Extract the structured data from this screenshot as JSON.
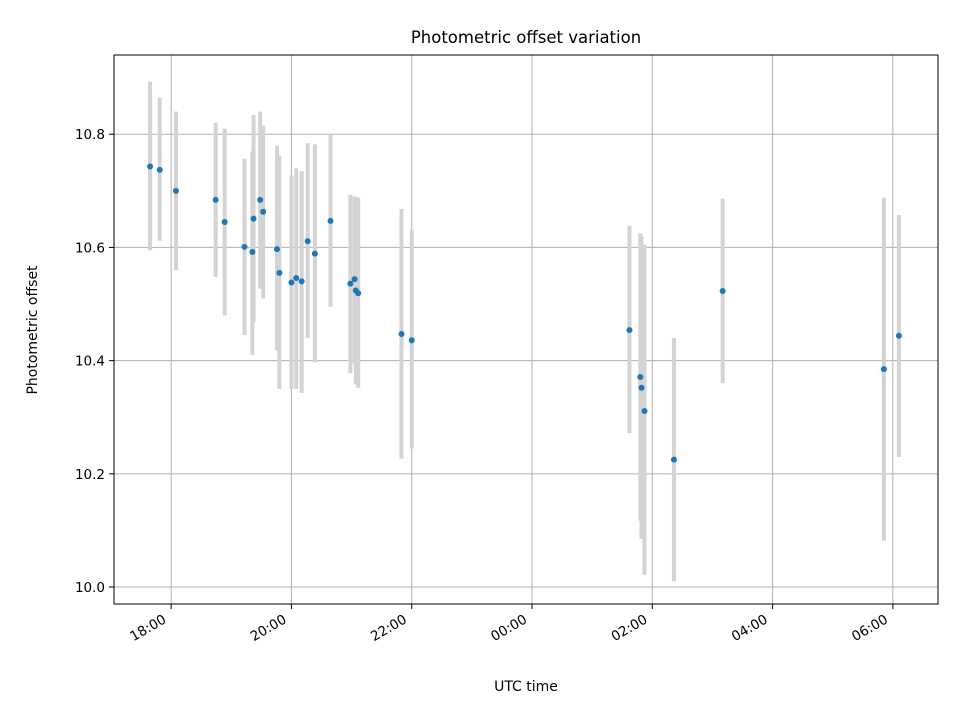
{
  "chart_data": {
    "type": "scatter",
    "title": "Photometric offset variation",
    "xlabel": "UTC time",
    "ylabel": "Photometric offset",
    "x_unit": "hours after 18:00 UTC (axis shows clock time, wraps at midnight)",
    "xlim": [
      -0.95,
      12.75
    ],
    "ylim": [
      9.97,
      10.94
    ],
    "x_ticks": [
      {
        "value": 0,
        "label": "18:00"
      },
      {
        "value": 2,
        "label": "20:00"
      },
      {
        "value": 4,
        "label": "22:00"
      },
      {
        "value": 6,
        "label": "00:00"
      },
      {
        "value": 8,
        "label": "02:00"
      },
      {
        "value": 10,
        "label": "04:00"
      },
      {
        "value": 12,
        "label": "06:00"
      }
    ],
    "y_ticks": [
      {
        "value": 10.0,
        "label": "10.0"
      },
      {
        "value": 10.2,
        "label": "10.2"
      },
      {
        "value": 10.4,
        "label": "10.4"
      },
      {
        "value": 10.6,
        "label": "10.6"
      },
      {
        "value": 10.8,
        "label": "10.8"
      }
    ],
    "grid": true,
    "marker_color": "#1f77b4",
    "errorbar_color": "#d3d3d3",
    "points": [
      {
        "x": -0.35,
        "y": 10.743,
        "ylo": 10.595,
        "yhi": 10.893
      },
      {
        "x": -0.19,
        "y": 10.737,
        "ylo": 10.612,
        "yhi": 10.865
      },
      {
        "x": 0.08,
        "y": 10.7,
        "ylo": 10.56,
        "yhi": 10.84
      },
      {
        "x": 0.74,
        "y": 10.684,
        "ylo": 10.548,
        "yhi": 10.82
      },
      {
        "x": 0.89,
        "y": 10.645,
        "ylo": 10.48,
        "yhi": 10.81
      },
      {
        "x": 1.22,
        "y": 10.601,
        "ylo": 10.445,
        "yhi": 10.757
      },
      {
        "x": 1.35,
        "y": 10.592,
        "ylo": 10.41,
        "yhi": 10.77
      },
      {
        "x": 1.37,
        "y": 10.651,
        "ylo": 10.468,
        "yhi": 10.834
      },
      {
        "x": 1.48,
        "y": 10.684,
        "ylo": 10.527,
        "yhi": 10.84
      },
      {
        "x": 1.53,
        "y": 10.663,
        "ylo": 10.51,
        "yhi": 10.815
      },
      {
        "x": 1.76,
        "y": 10.597,
        "ylo": 10.418,
        "yhi": 10.78
      },
      {
        "x": 1.8,
        "y": 10.555,
        "ylo": 10.35,
        "yhi": 10.762
      },
      {
        "x": 2.0,
        "y": 10.538,
        "ylo": 10.35,
        "yhi": 10.727
      },
      {
        "x": 2.08,
        "y": 10.546,
        "ylo": 10.35,
        "yhi": 10.74
      },
      {
        "x": 2.17,
        "y": 10.54,
        "ylo": 10.343,
        "yhi": 10.735
      },
      {
        "x": 2.27,
        "y": 10.611,
        "ylo": 10.44,
        "yhi": 10.784
      },
      {
        "x": 2.39,
        "y": 10.589,
        "ylo": 10.397,
        "yhi": 10.782
      },
      {
        "x": 2.65,
        "y": 10.647,
        "ylo": 10.495,
        "yhi": 10.8
      },
      {
        "x": 2.98,
        "y": 10.536,
        "ylo": 10.378,
        "yhi": 10.693
      },
      {
        "x": 3.05,
        "y": 10.544,
        "ylo": 10.395,
        "yhi": 10.69
      },
      {
        "x": 3.07,
        "y": 10.524,
        "ylo": 10.358,
        "yhi": 10.688
      },
      {
        "x": 3.11,
        "y": 10.519,
        "ylo": 10.352,
        "yhi": 10.688
      },
      {
        "x": 3.83,
        "y": 10.447,
        "ylo": 10.227,
        "yhi": 10.668
      },
      {
        "x": 4.0,
        "y": 10.436,
        "ylo": 10.245,
        "yhi": 10.632
      },
      {
        "x": 7.62,
        "y": 10.454,
        "ylo": 10.272,
        "yhi": 10.638
      },
      {
        "x": 7.8,
        "y": 10.371,
        "ylo": 10.117,
        "yhi": 10.625
      },
      {
        "x": 7.82,
        "y": 10.352,
        "ylo": 10.085,
        "yhi": 10.62
      },
      {
        "x": 7.87,
        "y": 10.311,
        "ylo": 10.022,
        "yhi": 10.605
      },
      {
        "x": 8.36,
        "y": 10.225,
        "ylo": 10.01,
        "yhi": 10.44
      },
      {
        "x": 9.17,
        "y": 10.523,
        "ylo": 10.36,
        "yhi": 10.686
      },
      {
        "x": 11.85,
        "y": 10.385,
        "ylo": 10.082,
        "yhi": 10.688
      },
      {
        "x": 12.1,
        "y": 10.444,
        "ylo": 10.23,
        "yhi": 10.657
      }
    ]
  }
}
